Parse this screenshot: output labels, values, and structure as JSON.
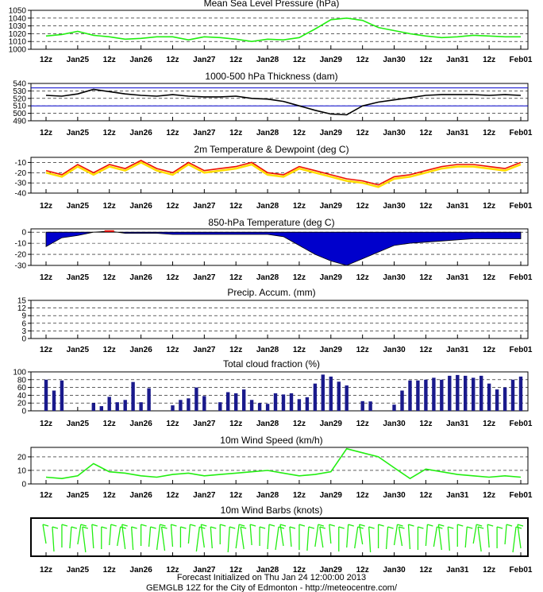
{
  "x_tick_labels": [
    "12z",
    "Jan25",
    "12z",
    "Jan26",
    "12z",
    "Jan27",
    "12z",
    "Jan28",
    "12z",
    "Jan29",
    "12z",
    "Jan30",
    "12z",
    "Jan31",
    "12z",
    "Feb01"
  ],
  "footer": {
    "line1": "Forecast Initialized on Thu Jan 24 12:00:00 2013",
    "line2": "GEMGLB 12Z for the City of Edmonton - http://meteocentre.com/"
  },
  "colors": {
    "green": "#22ee11",
    "black": "#000000",
    "blue": "#0000cc",
    "red": "#ee1100",
    "yellow": "#ffdd00",
    "navy": "#1a1a8c",
    "frame": "#000000"
  },
  "chart_data": [
    {
      "id": "mslp",
      "type": "line",
      "title": "Mean Sea Level Pressure (hPa)",
      "ylim": [
        1000,
        1050
      ],
      "yticks": [
        1000,
        1010,
        1020,
        1030,
        1040,
        1050
      ],
      "x_hours": [
        0,
        6,
        12,
        18,
        24,
        30,
        36,
        42,
        48,
        54,
        60,
        66,
        72,
        78,
        84,
        90,
        96,
        102,
        108,
        114,
        120,
        126,
        132,
        138,
        144,
        150,
        156,
        162,
        168,
        174,
        180
      ],
      "series": [
        {
          "color": "green",
          "values": [
            1017,
            1019,
            1023,
            1018,
            1016,
            1013,
            1014,
            1016,
            1016,
            1012,
            1016,
            1015,
            1013,
            1010,
            1013,
            1012,
            1015,
            1026,
            1038,
            1040,
            1037,
            1028,
            1024,
            1020,
            1017,
            1015,
            1016,
            1018,
            1017,
            1016,
            1016
          ]
        }
      ]
    },
    {
      "id": "thickness",
      "type": "line",
      "title": "1000-500 hPa Thickness (dam)",
      "ylim": [
        490,
        540
      ],
      "yticks": [
        490,
        500,
        510,
        520,
        530,
        540
      ],
      "ref_lines": [
        534,
        510
      ],
      "x_hours": [
        0,
        6,
        12,
        18,
        24,
        30,
        36,
        42,
        48,
        54,
        60,
        66,
        72,
        78,
        84,
        90,
        96,
        102,
        108,
        114,
        120,
        126,
        132,
        138,
        144,
        150,
        156,
        162,
        168,
        174,
        180
      ],
      "series": [
        {
          "color": "black",
          "values": [
            524,
            523,
            526,
            532,
            529,
            526,
            524,
            523,
            525,
            523,
            522,
            522,
            523,
            520,
            519,
            516,
            510,
            504,
            499,
            498,
            510,
            515,
            518,
            521,
            524,
            525,
            525,
            525,
            524,
            525,
            524
          ]
        }
      ]
    },
    {
      "id": "temp_dew",
      "type": "line",
      "title": "2m Temperature & Dewpoint (deg C)",
      "ylim": [
        -40,
        -5
      ],
      "yticks": [
        -40,
        -30,
        -20,
        -10
      ],
      "x_hours": [
        0,
        6,
        12,
        18,
        24,
        30,
        36,
        42,
        48,
        54,
        60,
        66,
        72,
        78,
        84,
        90,
        96,
        102,
        108,
        114,
        120,
        126,
        132,
        138,
        144,
        150,
        156,
        162,
        168,
        174,
        180
      ],
      "series": [
        {
          "name": "",
          "color": "red",
          "values": [
            -18,
            -22,
            -12,
            -20,
            -12,
            -16,
            -8,
            -16,
            -20,
            -10,
            -18,
            -16,
            -14,
            -10,
            -20,
            -22,
            -14,
            -18,
            -22,
            -26,
            -28,
            -32,
            -24,
            -22,
            -18,
            -14,
            -12,
            -12,
            -14,
            -16,
            -10
          ]
        },
        {
          "name": "",
          "color": "yellow",
          "values": [
            -20,
            -24,
            -14,
            -22,
            -14,
            -18,
            -10,
            -18,
            -22,
            -12,
            -20,
            -18,
            -16,
            -12,
            -22,
            -24,
            -16,
            -20,
            -24,
            -28,
            -30,
            -34,
            -26,
            -24,
            -20,
            -16,
            -14,
            -14,
            -16,
            -18,
            -12
          ]
        }
      ]
    },
    {
      "id": "t850",
      "type": "area",
      "title": "850-hPa Temperature (deg C)",
      "ylim": [
        -30,
        3
      ],
      "yticks": [
        -30,
        -20,
        -10,
        0
      ],
      "x_hours": [
        0,
        6,
        12,
        18,
        24,
        30,
        36,
        42,
        48,
        54,
        60,
        66,
        72,
        78,
        84,
        90,
        96,
        102,
        108,
        114,
        120,
        126,
        132,
        138,
        144,
        150,
        156,
        162,
        168,
        174,
        180
      ],
      "series": [
        {
          "color": "blue",
          "values": [
            -13,
            -5,
            -3,
            0,
            1,
            -1,
            -1,
            -1,
            -2,
            -2,
            -2,
            -2,
            -2,
            -2,
            -2,
            -4,
            -12,
            -20,
            -26,
            -30,
            -24,
            -18,
            -12,
            -10,
            -9,
            -8,
            -7,
            -6,
            -6,
            -6,
            -6
          ]
        }
      ]
    },
    {
      "id": "precip",
      "type": "bar",
      "title": "Precip. Accum. (mm)",
      "ylim": [
        0,
        15
      ],
      "yticks": [
        0,
        3,
        6,
        9,
        12,
        15
      ],
      "x_hours": [],
      "series": [
        {
          "color": "green",
          "values": []
        }
      ]
    },
    {
      "id": "cloud",
      "type": "bar",
      "title": "Total cloud fraction (%)",
      "ylim": [
        0,
        100
      ],
      "yticks": [
        0,
        20,
        40,
        60,
        80,
        100
      ],
      "x_hours": [
        0,
        3,
        6,
        9,
        12,
        15,
        18,
        21,
        24,
        27,
        30,
        33,
        36,
        39,
        42,
        45,
        48,
        51,
        54,
        57,
        60,
        63,
        66,
        69,
        72,
        75,
        78,
        81,
        84,
        87,
        90,
        93,
        96,
        99,
        102,
        105,
        108,
        111,
        114,
        117,
        120,
        123,
        126,
        129,
        132,
        135,
        138,
        141,
        144,
        147,
        150,
        153,
        156,
        159,
        162,
        165,
        168,
        171,
        174,
        177,
        180
      ],
      "series": [
        {
          "color": "navy",
          "values": [
            80,
            52,
            78,
            0,
            0,
            0,
            20,
            12,
            36,
            22,
            28,
            74,
            22,
            58,
            0,
            0,
            14,
            28,
            32,
            60,
            38,
            0,
            22,
            48,
            45,
            55,
            28,
            20,
            18,
            45,
            42,
            45,
            30,
            35,
            70,
            93,
            88,
            75,
            65,
            0,
            25,
            24,
            0,
            0,
            16,
            52,
            78,
            78,
            80,
            85,
            80,
            90,
            92,
            90,
            85,
            90,
            70,
            55,
            60,
            80,
            88
          ]
        }
      ]
    },
    {
      "id": "wind",
      "type": "line",
      "title": "10m Wind Speed (km/h)",
      "ylim": [
        0,
        27
      ],
      "yticks": [
        0,
        10,
        20
      ],
      "x_hours": [
        0,
        6,
        12,
        18,
        24,
        30,
        36,
        42,
        48,
        54,
        60,
        66,
        72,
        78,
        84,
        90,
        96,
        102,
        108,
        114,
        120,
        126,
        132,
        138,
        144,
        150,
        156,
        162,
        168,
        174,
        180
      ],
      "series": [
        {
          "color": "green",
          "values": [
            5,
            4,
            6,
            15,
            9,
            8,
            6,
            5,
            7,
            8,
            6,
            7,
            8,
            9,
            10,
            8,
            6,
            7,
            9,
            26,
            23,
            20,
            12,
            4,
            11,
            9,
            7,
            6,
            5,
            6,
            5
          ]
        }
      ]
    },
    {
      "id": "barbs",
      "type": "barbs",
      "title": "10m Wind Barbs  (knots)"
    }
  ]
}
